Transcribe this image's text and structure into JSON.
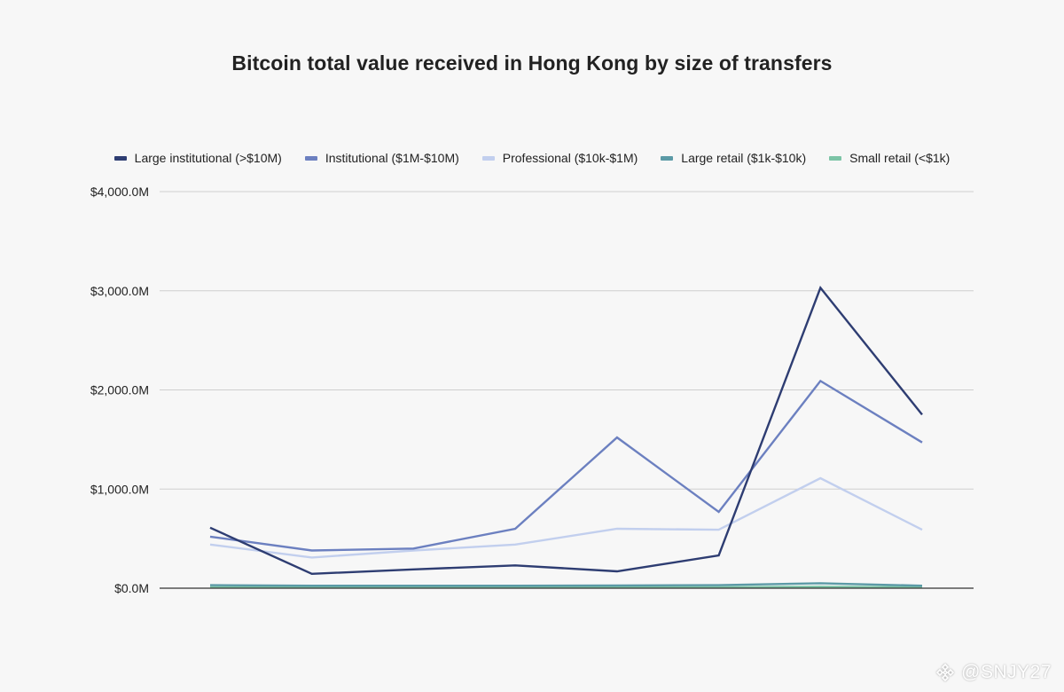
{
  "watermark": {
    "text": "@SNJY27"
  },
  "chart_data": {
    "type": "line",
    "title": "Bitcoin total value received in Hong Kong by size of transfers",
    "xlabel": "",
    "ylabel": "",
    "ylim": [
      0,
      4000
    ],
    "y_unit": "M USD",
    "y_ticks": [
      0,
      1000,
      2000,
      3000,
      4000
    ],
    "y_tick_labels": [
      "$0.0M",
      "$1,000.0M",
      "$2,000.0M",
      "$3,000.0M",
      "$4,000.0M"
    ],
    "x_tick_labels_visible": false,
    "grid": true,
    "legend_position": "top-center",
    "series": [
      {
        "name": "Large institutional (>$10M)",
        "color": "#2e3d72",
        "values": [
          610,
          145,
          190,
          230,
          170,
          330,
          3030,
          1750
        ]
      },
      {
        "name": "Institutional ($1M-$10M)",
        "color": "#6c80c0",
        "values": [
          520,
          380,
          400,
          600,
          1520,
          770,
          2090,
          1470
        ]
      },
      {
        "name": "Professional ($10k-$1M)",
        "color": "#c2cfee",
        "values": [
          440,
          310,
          380,
          440,
          600,
          590,
          1110,
          590
        ]
      },
      {
        "name": "Large retail ($1k-$10k)",
        "color": "#5b9aa6",
        "values": [
          30,
          25,
          25,
          25,
          28,
          30,
          50,
          25
        ]
      },
      {
        "name": "Small retail (<$1k)",
        "color": "#7cc4a6",
        "values": [
          10,
          10,
          10,
          10,
          10,
          10,
          15,
          10
        ]
      }
    ]
  }
}
